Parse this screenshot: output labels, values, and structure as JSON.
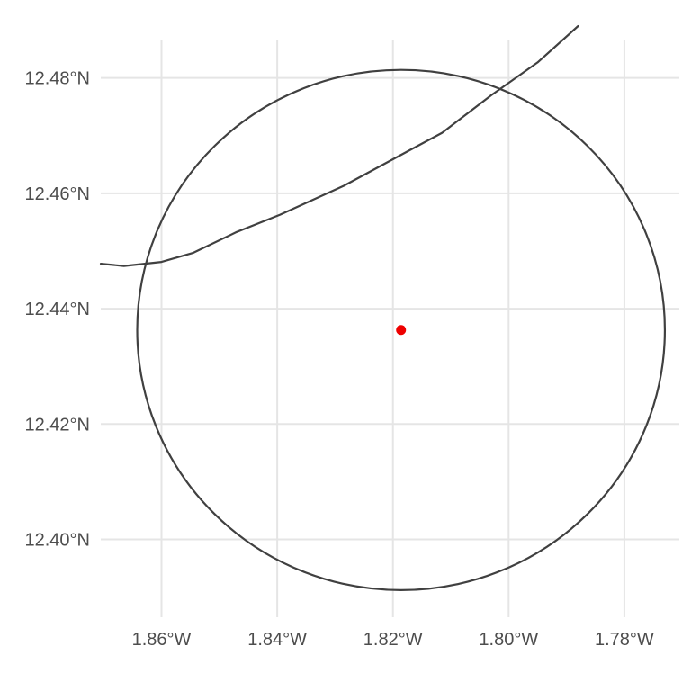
{
  "chart_data": {
    "type": "map",
    "title": "",
    "xlabel": "",
    "ylabel": "",
    "xlim": [
      -1.8705,
      -1.7705
    ],
    "ylim": [
      12.3865,
      12.4865
    ],
    "grid": true,
    "x_ticks": [
      {
        "value": -1.86,
        "label": "1.86°W"
      },
      {
        "value": -1.84,
        "label": "1.84°W"
      },
      {
        "value": -1.82,
        "label": "1.82°W"
      },
      {
        "value": -1.8,
        "label": "1.80°W"
      },
      {
        "value": -1.78,
        "label": "1.78°W"
      }
    ],
    "y_ticks": [
      {
        "value": 12.48,
        "label": "12.48°N"
      },
      {
        "value": 12.46,
        "label": "12.46°N"
      },
      {
        "value": 12.44,
        "label": "12.44°N"
      },
      {
        "value": 12.42,
        "label": "12.42°N"
      },
      {
        "value": 12.4,
        "label": "12.40°N"
      }
    ],
    "center_point": {
      "lon": -1.8186,
      "lat": 12.4363,
      "color": "#ee0000"
    },
    "buffer_circle": {
      "center_lon": -1.8186,
      "center_lat": 12.4363,
      "radius_lon": 0.0456,
      "radius_lat": 0.0451,
      "color": "#404040"
    },
    "boundary_line": {
      "color": "#404040",
      "points": [
        [
          -1.8705,
          12.4478
        ],
        [
          -1.8665,
          12.4474
        ],
        [
          -1.86,
          12.4481
        ],
        [
          -1.8545,
          12.4497
        ],
        [
          -1.847,
          12.4533
        ],
        [
          -1.8395,
          12.4563
        ],
        [
          -1.8285,
          12.4613
        ],
        [
          -1.8165,
          12.4678
        ],
        [
          -1.8115,
          12.4705
        ],
        [
          -1.803,
          12.477
        ],
        [
          -1.795,
          12.4827
        ],
        [
          -1.788,
          12.489
        ]
      ]
    }
  }
}
